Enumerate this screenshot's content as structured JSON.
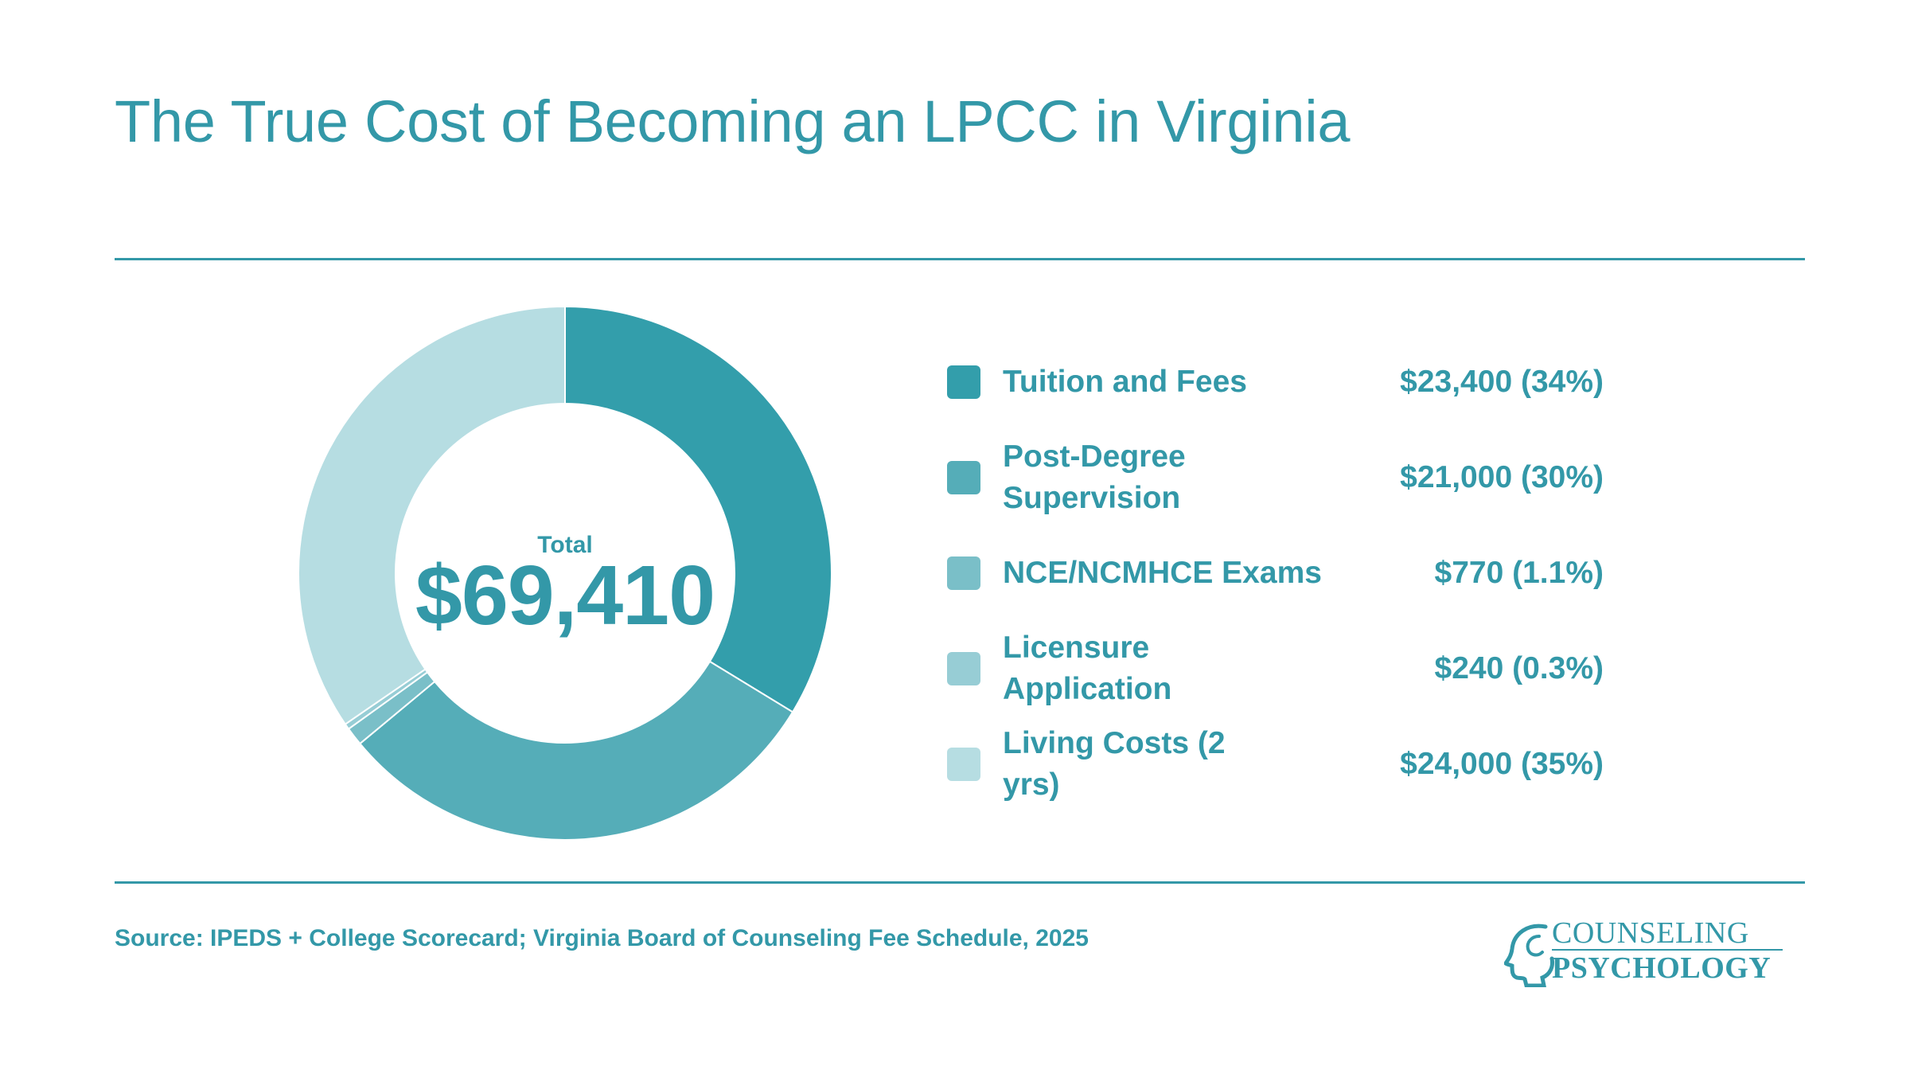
{
  "title": "The True Cost of Becoming an LPCC in Virginia",
  "chart_data": {
    "type": "pie",
    "variant": "donut",
    "categories": [
      "Tuition and Fees",
      "Post-Degree Supervision",
      "NCE/NCMHCE Exams",
      "Licensure Application",
      "Living Costs (2 yrs)"
    ],
    "values": [
      23400,
      21000,
      770,
      240,
      24000
    ],
    "value_labels": [
      "$23,400 (34%)",
      "$21,000 (30%)",
      "$770 (1.1%)",
      "$240 (0.3%)",
      "$24,000 (35%)"
    ],
    "colors": [
      "#339eab",
      "#55adb8",
      "#7abfc8",
      "#97cdd5",
      "#b6dde2"
    ],
    "center_label": "Total",
    "center_value": "$69,410",
    "legend_position": "right"
  },
  "source": "Source: IPEDS + College Scorecard; Virginia Board of Counseling Fee Schedule, 2025",
  "logo": {
    "line1": "COUNSELING",
    "line2": "PSYCHOLOGY",
    "icon": "head-profile-icon"
  }
}
